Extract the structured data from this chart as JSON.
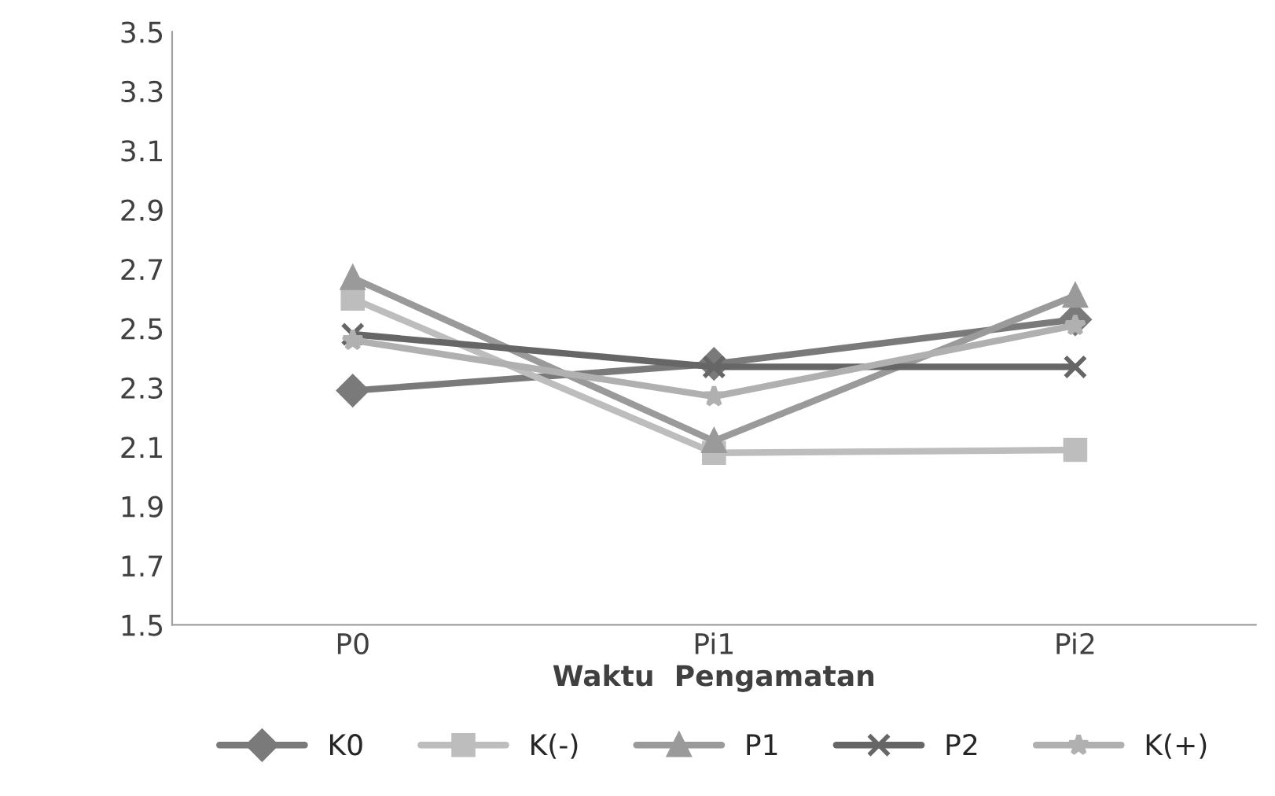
{
  "chart_data": {
    "type": "line",
    "xlabel": "Waktu  Pengamatan",
    "categories": [
      "P0",
      "Pi1",
      "Pi2"
    ],
    "series": [
      {
        "name": "K0",
        "color": "#7a7a7a",
        "marker": "diamond",
        "values": [
          2.29,
          2.38,
          2.53
        ]
      },
      {
        "name": "K(-)",
        "color": "#bdbdbd",
        "marker": "square",
        "values": [
          2.6,
          2.08,
          2.09
        ]
      },
      {
        "name": "P1",
        "color": "#9a9a9a",
        "marker": "triangle",
        "values": [
          2.67,
          2.12,
          2.61
        ]
      },
      {
        "name": "P2",
        "color": "#666666",
        "marker": "cross",
        "values": [
          2.48,
          2.37,
          2.37
        ]
      },
      {
        "name": "K(+)",
        "color": "#b0b0b0",
        "marker": "star",
        "values": [
          2.46,
          2.27,
          2.51
        ]
      }
    ],
    "ylim": [
      1.5,
      3.5
    ],
    "yticks": [
      1.5,
      1.7,
      1.9,
      2.1,
      2.3,
      2.5,
      2.7,
      2.9,
      3.1,
      3.3,
      3.5
    ],
    "grid": false,
    "legend": "bottom"
  }
}
